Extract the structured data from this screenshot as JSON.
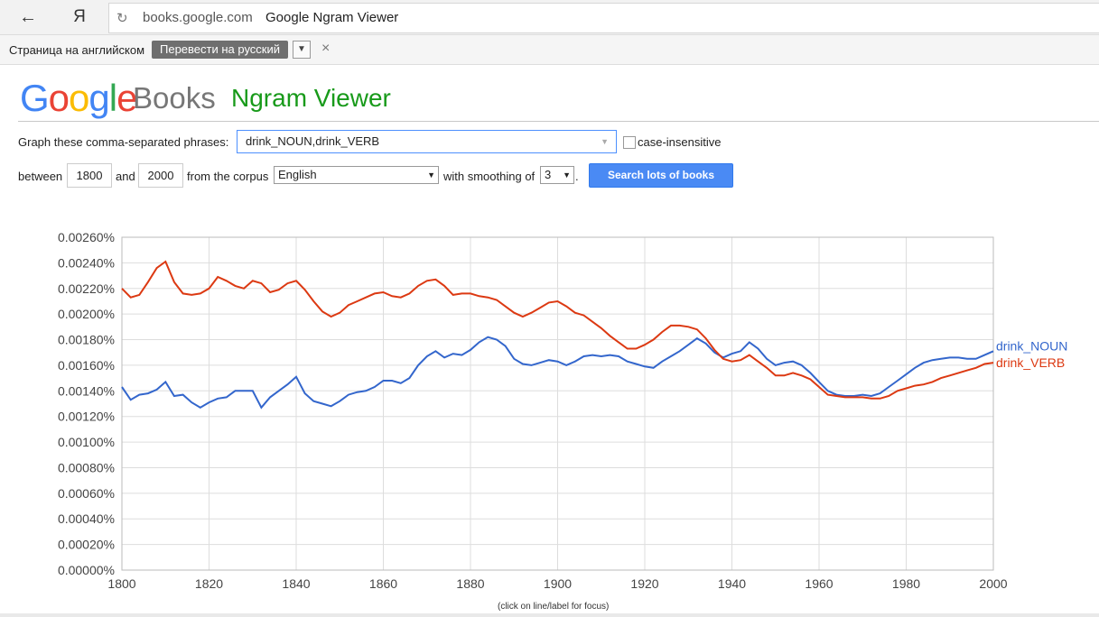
{
  "browser": {
    "back_icon": "arrow-left",
    "yandex_letter": "Я",
    "domain": "books.google.com",
    "page_title": "Google Ngram Viewer"
  },
  "translate_bar": {
    "label": "Страница на английском",
    "button": "Перевести на русский",
    "close": "×"
  },
  "header": {
    "brand_letters": [
      {
        "char": "G",
        "color": "#4285f4"
      },
      {
        "char": "o",
        "color": "#ea4335"
      },
      {
        "char": "o",
        "color": "#fbbc05"
      },
      {
        "char": "g",
        "color": "#4285f4"
      },
      {
        "char": "l",
        "color": "#34a853"
      },
      {
        "char": "e",
        "color": "#ea4335"
      }
    ],
    "books": "Books",
    "title": "Ngram Viewer"
  },
  "form": {
    "phrase_label": "Graph these comma-separated phrases:",
    "phrase_value": "drink_NOUN,drink_VERB",
    "case_label": "case-insensitive",
    "between_label": "between",
    "year_start": "1800",
    "and_label": "and",
    "year_end": "2000",
    "corpus_label": "from the corpus",
    "corpus": "English",
    "smoothing_label": "with smoothing of",
    "smoothing": "3",
    "search_button": "Search lots of books"
  },
  "footnote": "(click on line/label for focus)",
  "chart_data": {
    "type": "line",
    "xlim": [
      1800,
      2000
    ],
    "ylim": [
      0,
      0.0026
    ],
    "x_ticks": [
      "1800",
      "1820",
      "1840",
      "1860",
      "1880",
      "1900",
      "1920",
      "1940",
      "1960",
      "1980",
      "2000"
    ],
    "y_ticks": [
      "0.00000%",
      "0.00020%",
      "0.00040%",
      "0.00060%",
      "0.00080%",
      "0.00100%",
      "0.00120%",
      "0.00140%",
      "0.00160%",
      "0.00180%",
      "0.00200%",
      "0.00220%",
      "0.00240%",
      "0.00260%"
    ],
    "grid": true,
    "legend": "right end of lines",
    "series": [
      {
        "name": "drink_NOUN",
        "color": "#3366cc",
        "x": [
          1800,
          1802,
          1804,
          1806,
          1808,
          1810,
          1812,
          1814,
          1816,
          1818,
          1820,
          1822,
          1824,
          1826,
          1828,
          1830,
          1832,
          1834,
          1836,
          1838,
          1840,
          1842,
          1844,
          1846,
          1848,
          1850,
          1852,
          1854,
          1856,
          1858,
          1860,
          1862,
          1864,
          1866,
          1868,
          1870,
          1872,
          1874,
          1876,
          1878,
          1880,
          1882,
          1884,
          1886,
          1888,
          1890,
          1892,
          1894,
          1896,
          1898,
          1900,
          1902,
          1904,
          1906,
          1908,
          1910,
          1912,
          1914,
          1916,
          1918,
          1920,
          1922,
          1924,
          1926,
          1928,
          1930,
          1932,
          1934,
          1936,
          1938,
          1940,
          1942,
          1944,
          1946,
          1948,
          1950,
          1952,
          1954,
          1956,
          1958,
          1960,
          1962,
          1964,
          1966,
          1968,
          1970,
          1972,
          1974,
          1976,
          1978,
          1980,
          1982,
          1984,
          1986,
          1988,
          1990,
          1992,
          1994,
          1996,
          1998,
          2000
        ],
        "y": [
          0.00143,
          0.00133,
          0.00137,
          0.00138,
          0.00141,
          0.00147,
          0.00136,
          0.00137,
          0.00131,
          0.00127,
          0.00131,
          0.00134,
          0.00135,
          0.0014,
          0.0014,
          0.0014,
          0.00127,
          0.00135,
          0.0014,
          0.00145,
          0.00151,
          0.00138,
          0.00132,
          0.0013,
          0.00128,
          0.00132,
          0.00137,
          0.00139,
          0.0014,
          0.00143,
          0.00148,
          0.00148,
          0.00146,
          0.0015,
          0.0016,
          0.00167,
          0.00171,
          0.00166,
          0.00169,
          0.00168,
          0.00172,
          0.00178,
          0.00182,
          0.0018,
          0.00175,
          0.00165,
          0.00161,
          0.0016,
          0.00162,
          0.00164,
          0.00163,
          0.0016,
          0.00163,
          0.00167,
          0.00168,
          0.00167,
          0.00168,
          0.00167,
          0.00163,
          0.00161,
          0.00159,
          0.00158,
          0.00163,
          0.00167,
          0.00171,
          0.00176,
          0.00181,
          0.00177,
          0.0017,
          0.00166,
          0.00169,
          0.00171,
          0.00178,
          0.00173,
          0.00165,
          0.0016,
          0.00162,
          0.00163,
          0.0016,
          0.00154,
          0.00147,
          0.0014,
          0.00137,
          0.00136,
          0.00136,
          0.00137,
          0.00136,
          0.00138,
          0.00143,
          0.00148,
          0.00153,
          0.00158,
          0.00162,
          0.00164,
          0.00165,
          0.00166,
          0.00166,
          0.00165,
          0.00165,
          0.00168,
          0.00171
        ]
      },
      {
        "name": "drink_VERB",
        "color": "#dc3912",
        "x": [
          1800,
          1802,
          1804,
          1806,
          1808,
          1810,
          1812,
          1814,
          1816,
          1818,
          1820,
          1822,
          1824,
          1826,
          1828,
          1830,
          1832,
          1834,
          1836,
          1838,
          1840,
          1842,
          1844,
          1846,
          1848,
          1850,
          1852,
          1854,
          1856,
          1858,
          1860,
          1862,
          1864,
          1866,
          1868,
          1870,
          1872,
          1874,
          1876,
          1878,
          1880,
          1882,
          1884,
          1886,
          1888,
          1890,
          1892,
          1894,
          1896,
          1898,
          1900,
          1902,
          1904,
          1906,
          1908,
          1910,
          1912,
          1914,
          1916,
          1918,
          1920,
          1922,
          1924,
          1926,
          1928,
          1930,
          1932,
          1934,
          1936,
          1938,
          1940,
          1942,
          1944,
          1946,
          1948,
          1950,
          1952,
          1954,
          1956,
          1958,
          1960,
          1962,
          1964,
          1966,
          1968,
          1970,
          1972,
          1974,
          1976,
          1978,
          1980,
          1982,
          1984,
          1986,
          1988,
          1990,
          1992,
          1994,
          1996,
          1998,
          2000
        ],
        "y": [
          0.0022,
          0.00213,
          0.00215,
          0.00225,
          0.00236,
          0.00241,
          0.00225,
          0.00216,
          0.00215,
          0.00216,
          0.0022,
          0.00229,
          0.00226,
          0.00222,
          0.0022,
          0.00226,
          0.00224,
          0.00217,
          0.00219,
          0.00224,
          0.00226,
          0.00219,
          0.0021,
          0.00202,
          0.00198,
          0.00201,
          0.00207,
          0.0021,
          0.00213,
          0.00216,
          0.00217,
          0.00214,
          0.00213,
          0.00216,
          0.00222,
          0.00226,
          0.00227,
          0.00222,
          0.00215,
          0.00216,
          0.00216,
          0.00214,
          0.00213,
          0.00211,
          0.00206,
          0.00201,
          0.00198,
          0.00201,
          0.00205,
          0.00209,
          0.0021,
          0.00206,
          0.00201,
          0.00199,
          0.00194,
          0.00189,
          0.00183,
          0.00178,
          0.00173,
          0.00173,
          0.00176,
          0.0018,
          0.00186,
          0.00191,
          0.00191,
          0.0019,
          0.00188,
          0.00181,
          0.00172,
          0.00165,
          0.00163,
          0.00164,
          0.00168,
          0.00163,
          0.00158,
          0.00152,
          0.00152,
          0.00154,
          0.00152,
          0.00149,
          0.00143,
          0.00137,
          0.00136,
          0.00135,
          0.00135,
          0.00135,
          0.00134,
          0.00134,
          0.00136,
          0.0014,
          0.00142,
          0.00144,
          0.00145,
          0.00147,
          0.0015,
          0.00152,
          0.00154,
          0.00156,
          0.00158,
          0.00161,
          0.00162
        ]
      }
    ]
  }
}
